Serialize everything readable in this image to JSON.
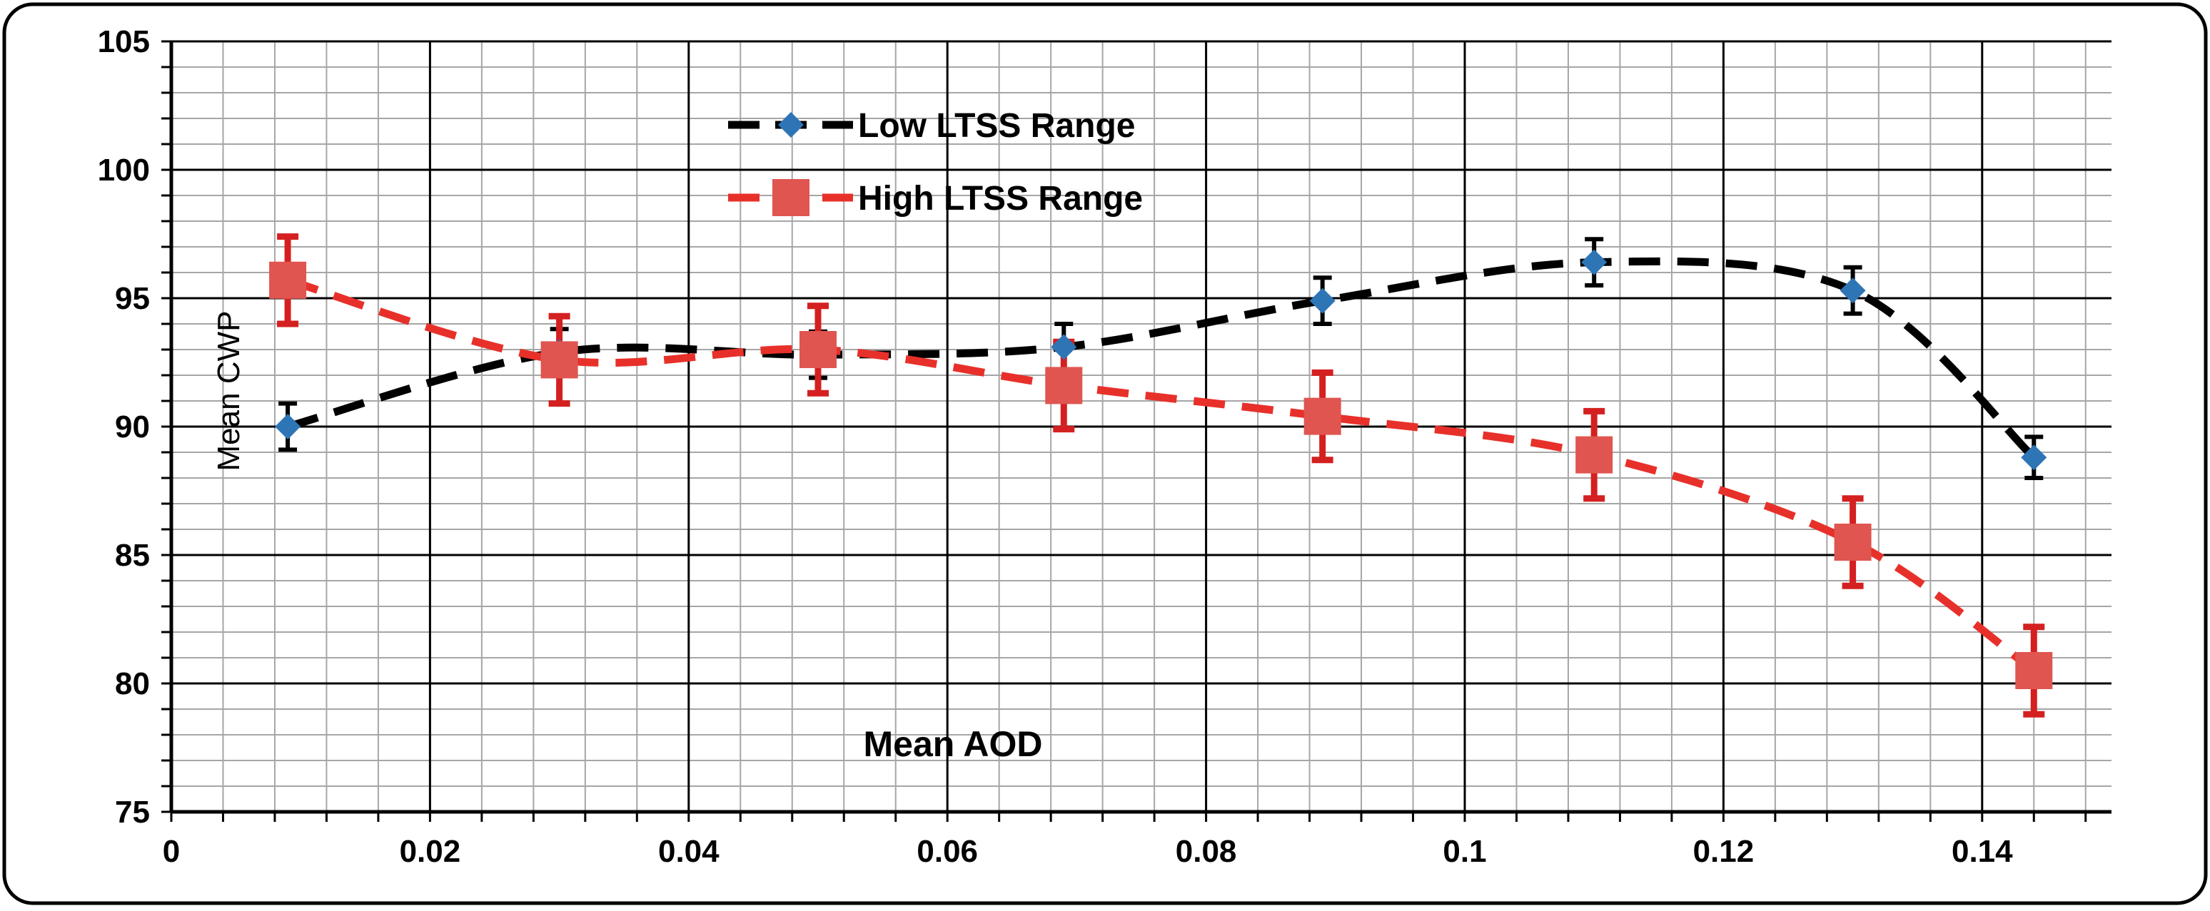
{
  "chart_data": {
    "type": "line",
    "title": "",
    "xlabel": "Mean AOD",
    "ylabel": "Mean CWP",
    "xlim": [
      0,
      0.15
    ],
    "ylim": [
      75,
      105
    ],
    "x_ticks": [
      0,
      0.02,
      0.04,
      0.06,
      0.08,
      0.1,
      0.12,
      0.14
    ],
    "x_tick_labels": [
      "0",
      "0.02",
      "0.04",
      "0.06",
      "0.08",
      "0.1",
      "0.12",
      "0.14"
    ],
    "y_ticks": [
      75,
      80,
      85,
      90,
      95,
      100,
      105
    ],
    "y_tick_labels": [
      "75",
      "80",
      "85",
      "90",
      "95",
      "100",
      "105"
    ],
    "x_minor_step": 0.004,
    "y_minor_step": 1,
    "grid": true,
    "legend_position": "top-center",
    "series": [
      {
        "name": "Low LTSS Range",
        "color": "#000000",
        "marker": "diamond",
        "marker_color": "#2e75b6",
        "error_color": "#000000",
        "line_style": "dashed",
        "x": [
          0.009,
          0.03,
          0.05,
          0.069,
          0.089,
          0.11,
          0.13,
          0.144
        ],
        "values": [
          90.0,
          92.9,
          92.8,
          93.1,
          94.9,
          96.4,
          95.3,
          88.8
        ],
        "errors": [
          0.9,
          0.9,
          0.9,
          0.9,
          0.9,
          0.9,
          0.9,
          0.8
        ]
      },
      {
        "name": "High LTSS Range",
        "color": "#e8302a",
        "marker": "square",
        "marker_color": "#e05550",
        "error_color": "#d42020",
        "line_style": "dashed",
        "x": [
          0.009,
          0.03,
          0.05,
          0.069,
          0.089,
          0.11,
          0.13,
          0.144
        ],
        "values": [
          95.7,
          92.6,
          93.0,
          91.6,
          90.4,
          88.9,
          85.5,
          80.5
        ],
        "errors": [
          1.7,
          1.7,
          1.7,
          1.7,
          1.7,
          1.7,
          1.7,
          1.7
        ]
      }
    ]
  }
}
